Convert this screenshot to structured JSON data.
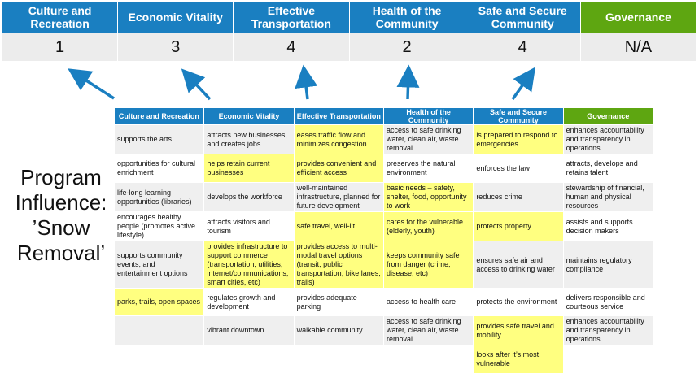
{
  "categories": [
    {
      "label": "Culture and Recreation",
      "score": "1"
    },
    {
      "label": "Economic Vitality",
      "score": "3"
    },
    {
      "label": "Effective Transportation",
      "score": "4"
    },
    {
      "label": "Health of the Community",
      "score": "2"
    },
    {
      "label": "Safe and Secure Community",
      "score": "4"
    },
    {
      "label": "Governance",
      "score": "N/A"
    }
  ],
  "program_title": [
    "Program",
    "Influence:",
    "’Snow",
    "Removal’"
  ],
  "colors": {
    "blue": "#1a7fc1",
    "green": "#5ea611",
    "highlight": "#ffff80"
  },
  "table": {
    "headers": [
      "Culture and Recreation",
      "Economic Vitality",
      "Effective Transportation",
      "Health of the Community",
      "Safe and Secure Community",
      "Governance"
    ],
    "rows": [
      [
        {
          "t": "supports the arts"
        },
        {
          "t": "attracts new businesses, and creates jobs"
        },
        {
          "t": "eases traffic flow and minimizes congestion",
          "h": true
        },
        {
          "t": "access to safe drinking water, clean air, waste removal"
        },
        {
          "t": "is prepared to respond to emergencies",
          "h": true
        },
        {
          "t": "enhances accountability and transparency in operations"
        }
      ],
      [
        {
          "t": "opportunities for cultural enrichment"
        },
        {
          "t": "helps retain current businesses",
          "h": true
        },
        {
          "t": "provides convenient and efficient access",
          "h": true
        },
        {
          "t": "preserves the natural environment"
        },
        {
          "t": "enforces the law"
        },
        {
          "t": "attracts, develops and retains talent"
        }
      ],
      [
        {
          "t": "life-long learning opportunities (libraries)"
        },
        {
          "t": "develops the workforce"
        },
        {
          "t": "well-maintained infrastructure, planned for future development"
        },
        {
          "t": "basic needs – safety, shelter, food, opportunity to work",
          "h": true
        },
        {
          "t": "reduces crime"
        },
        {
          "t": "stewardship of financial, human and physical resources"
        }
      ],
      [
        {
          "t": "encourages healthy people (promotes active lifestyle)"
        },
        {
          "t": "attracts visitors and tourism"
        },
        {
          "t": "safe travel, well-lit",
          "h": true
        },
        {
          "t": "cares for the vulnerable (elderly, youth)",
          "h": true
        },
        {
          "t": "protects property",
          "h": true
        },
        {
          "t": "assists and supports decision makers"
        }
      ],
      [
        {
          "t": "supports community events, and entertainment options"
        },
        {
          "t": "provides infrastructure to support commerce (transportation, utilities, internet/communications, smart cities, etc)",
          "h": true
        },
        {
          "t": "provides access to multi-modal travel options (transit, public transportation, bike lanes, trails)",
          "h": true
        },
        {
          "t": "keeps community safe from danger (crime, disease, etc)",
          "h": true
        },
        {
          "t": "ensures safe air and access to drinking water"
        },
        {
          "t": "maintains regulatory compliance"
        }
      ],
      [
        {
          "t": "parks, trails, open spaces",
          "h": true
        },
        {
          "t": "regulates growth and development"
        },
        {
          "t": "provides adequate parking"
        },
        {
          "t": "access to health care"
        },
        {
          "t": "protects the environment"
        },
        {
          "t": "delivers responsible and courteous service"
        }
      ],
      [
        {
          "t": ""
        },
        {
          "t": "vibrant downtown"
        },
        {
          "t": "walkable community"
        },
        {
          "t": "access to safe drinking water, clean air, waste removal"
        },
        {
          "t": "provides safe travel and mobility",
          "h": true
        },
        {
          "t": "enhances accountability and transparency in operations"
        }
      ],
      [
        {
          "t": ""
        },
        {
          "t": ""
        },
        {
          "t": ""
        },
        {
          "t": ""
        },
        {
          "t": "looks after it’s most vulnerable",
          "h": true
        },
        {
          "t": ""
        }
      ]
    ]
  }
}
